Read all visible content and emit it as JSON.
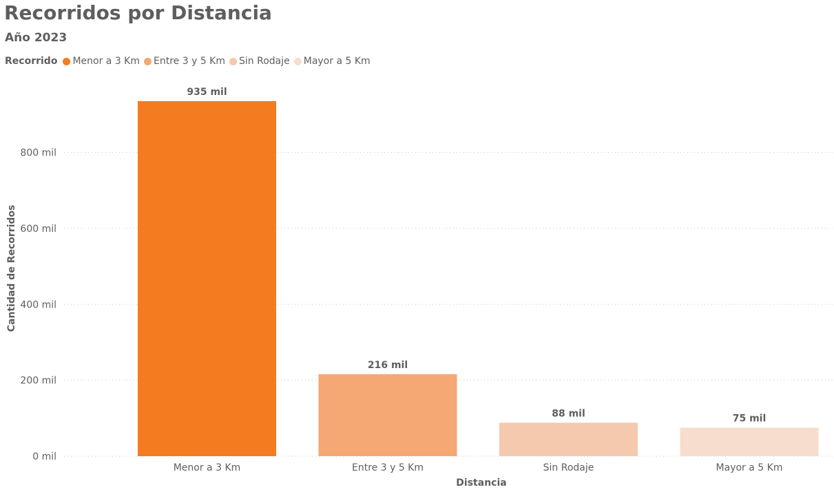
{
  "chart_data": {
    "type": "bar",
    "title": "Recorridos por Distancia",
    "subtitle": "Año 2023",
    "legend": {
      "title": "Recorrido",
      "placement": "top-left",
      "items": [
        {
          "label": "Menor a 3 Km",
          "color": "#f47b20"
        },
        {
          "label": "Entre 3 y 5 Km",
          "color": "#f5a873"
        },
        {
          "label": "Sin Rodaje",
          "color": "#f4c9ae"
        },
        {
          "label": "Mayor a 5 Km",
          "color": "#f7ddcd"
        }
      ]
    },
    "categories": [
      "Menor a 3 Km",
      "Entre 3 y 5 Km",
      "Sin Rodaje",
      "Mayor a 5 Km"
    ],
    "values": [
      935,
      216,
      88,
      75
    ],
    "data_labels": [
      "935 mil",
      "216 mil",
      "88 mil",
      "75 mil"
    ],
    "colors": [
      "#f47b20",
      "#f5a873",
      "#f4c9ae",
      "#f7ddcd"
    ],
    "xlabel": "Distancia",
    "ylabel": "Cantidad de Recorridos",
    "ylim": [
      0,
      935
    ],
    "yticks": [
      0,
      200,
      400,
      600,
      800
    ],
    "ytick_labels": [
      "0 mil",
      "200 mil",
      "400 mil",
      "600 mil",
      "800 mil"
    ],
    "grid": true
  }
}
